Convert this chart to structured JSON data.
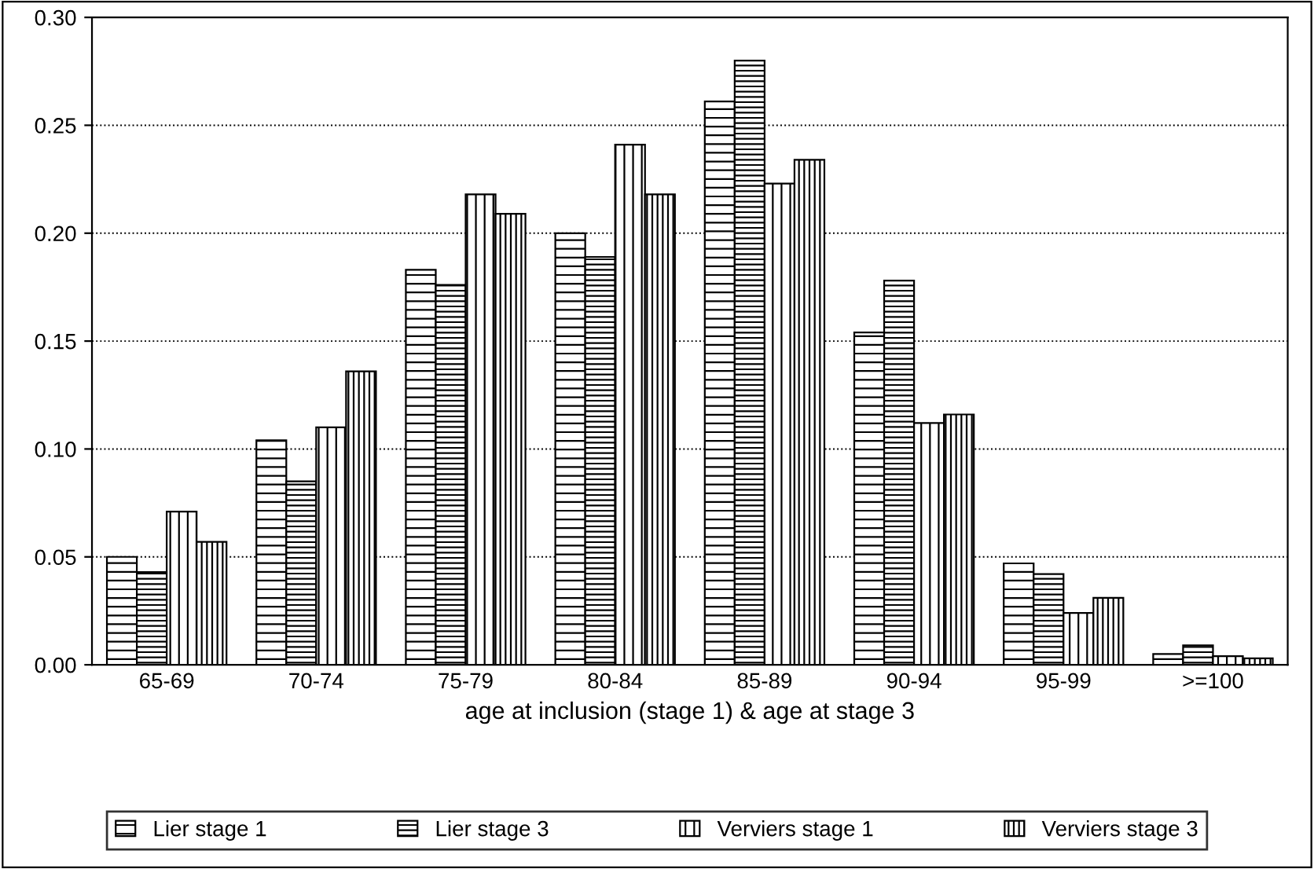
{
  "chart_data": {
    "type": "bar",
    "xlabel": "age at inclusion (stage 1) & age at stage 3",
    "categories": [
      "65-69",
      "70-74",
      "75-79",
      "80-84",
      "85-89",
      "90-94",
      "95-99",
      ">=100"
    ],
    "series": [
      {
        "name": "Lier stage 1",
        "color": "#000000",
        "values": [
          0.05,
          0.104,
          0.183,
          0.2,
          0.261,
          0.154,
          0.047,
          0.005
        ]
      },
      {
        "name": "Lier stage 3",
        "color": "#000000",
        "values": [
          0.043,
          0.085,
          0.176,
          0.189,
          0.28,
          0.178,
          0.042,
          0.009
        ]
      },
      {
        "name": "Verviers stage 1",
        "color": "#000000",
        "values": [
          0.071,
          0.11,
          0.218,
          0.241,
          0.223,
          0.112,
          0.024,
          0.004
        ]
      },
      {
        "name": "Verviers stage 3",
        "color": "#000000",
        "values": [
          0.057,
          0.136,
          0.209,
          0.218,
          0.234,
          0.116,
          0.031,
          0.003
        ]
      }
    ],
    "ylim": [
      0,
      0.3
    ],
    "yticks": [
      {
        "value": 0,
        "label": "0.00"
      },
      {
        "value": 0.05,
        "label": "0.05"
      },
      {
        "value": 0.1,
        "label": "0.10"
      },
      {
        "value": 0.15,
        "label": "0.15"
      },
      {
        "value": 0.2,
        "label": "0.20"
      },
      {
        "value": 0.25,
        "label": "0.25"
      },
      {
        "value": 0.3,
        "label": "0.30"
      }
    ],
    "grid": "y",
    "legend": "bottom"
  }
}
